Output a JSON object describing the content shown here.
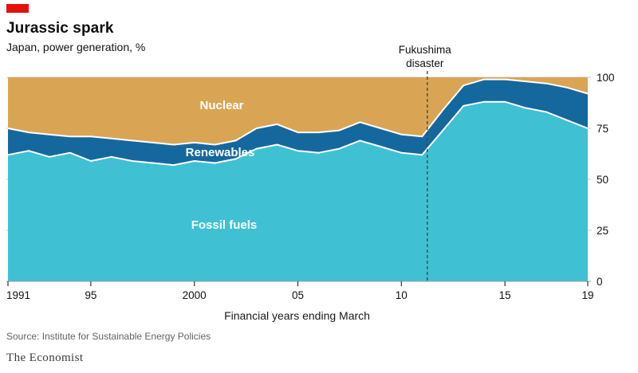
{
  "header": {
    "tab_color": "#E3120B",
    "title": "Jurassic spark",
    "subtitle": "Japan, power generation, %"
  },
  "chart_data": {
    "type": "area",
    "stacked": true,
    "unit": "%",
    "title": "Jurassic spark",
    "subtitle": "Japan, power generation, %",
    "xlabel": "Financial years ending March",
    "ylabel": "",
    "ylim": [
      0,
      100
    ],
    "y_ticks": [
      0,
      25,
      50,
      75,
      100
    ],
    "y_axis_side": "right",
    "grid": "horizontal",
    "x": [
      1991,
      1992,
      1993,
      1994,
      1995,
      1996,
      1997,
      1998,
      1999,
      2000,
      2001,
      2002,
      2003,
      2004,
      2005,
      2006,
      2007,
      2008,
      2009,
      2010,
      2011,
      2012,
      2013,
      2014,
      2015,
      2016,
      2017,
      2018,
      2019
    ],
    "x_ticks": [
      {
        "year": 1991,
        "label": "1991"
      },
      {
        "year": 1995,
        "label": "95"
      },
      {
        "year": 2000,
        "label": "2000"
      },
      {
        "year": 2005,
        "label": "05"
      },
      {
        "year": 2010,
        "label": "10"
      },
      {
        "year": 2015,
        "label": "15"
      },
      {
        "year": 2019,
        "label": "19"
      }
    ],
    "series": [
      {
        "name": "Fossil fuels",
        "color": "#3FC1D3",
        "values": [
          62,
          64,
          61,
          63,
          59,
          61,
          59,
          58,
          57,
          59,
          58,
          60,
          65,
          67,
          64,
          63,
          65,
          69,
          66,
          63,
          62,
          74,
          86,
          88,
          88,
          85,
          83,
          79,
          75
        ]
      },
      {
        "name": "Renewables",
        "color": "#15689E",
        "values": [
          13,
          9,
          11,
          8,
          12,
          9,
          10,
          10,
          10,
          9,
          9,
          9,
          10,
          10,
          9,
          10,
          9,
          9,
          9,
          9,
          9,
          10,
          10,
          11,
          11,
          13,
          14,
          16,
          17
        ]
      },
      {
        "name": "Nuclear",
        "color": "#D9A554",
        "values": [
          25,
          27,
          28,
          29,
          29,
          30,
          31,
          32,
          33,
          32,
          33,
          31,
          25,
          23,
          27,
          27,
          26,
          22,
          25,
          28,
          29,
          16,
          4,
          1,
          1,
          2,
          3,
          5,
          8
        ]
      }
    ],
    "annotation": {
      "year": 2011.25,
      "lines": [
        "Fukushima",
        "disaster"
      ]
    },
    "boundary_stroke_color": "#ffffff",
    "gridline_color": "#c9c9c9",
    "dashed_line_color": "#474747",
    "tick_color": "#333333",
    "label_color": "#111111"
  },
  "footer": {
    "source": "Source: Institute for Sustainable Energy Policies",
    "brand": "The Economist"
  }
}
